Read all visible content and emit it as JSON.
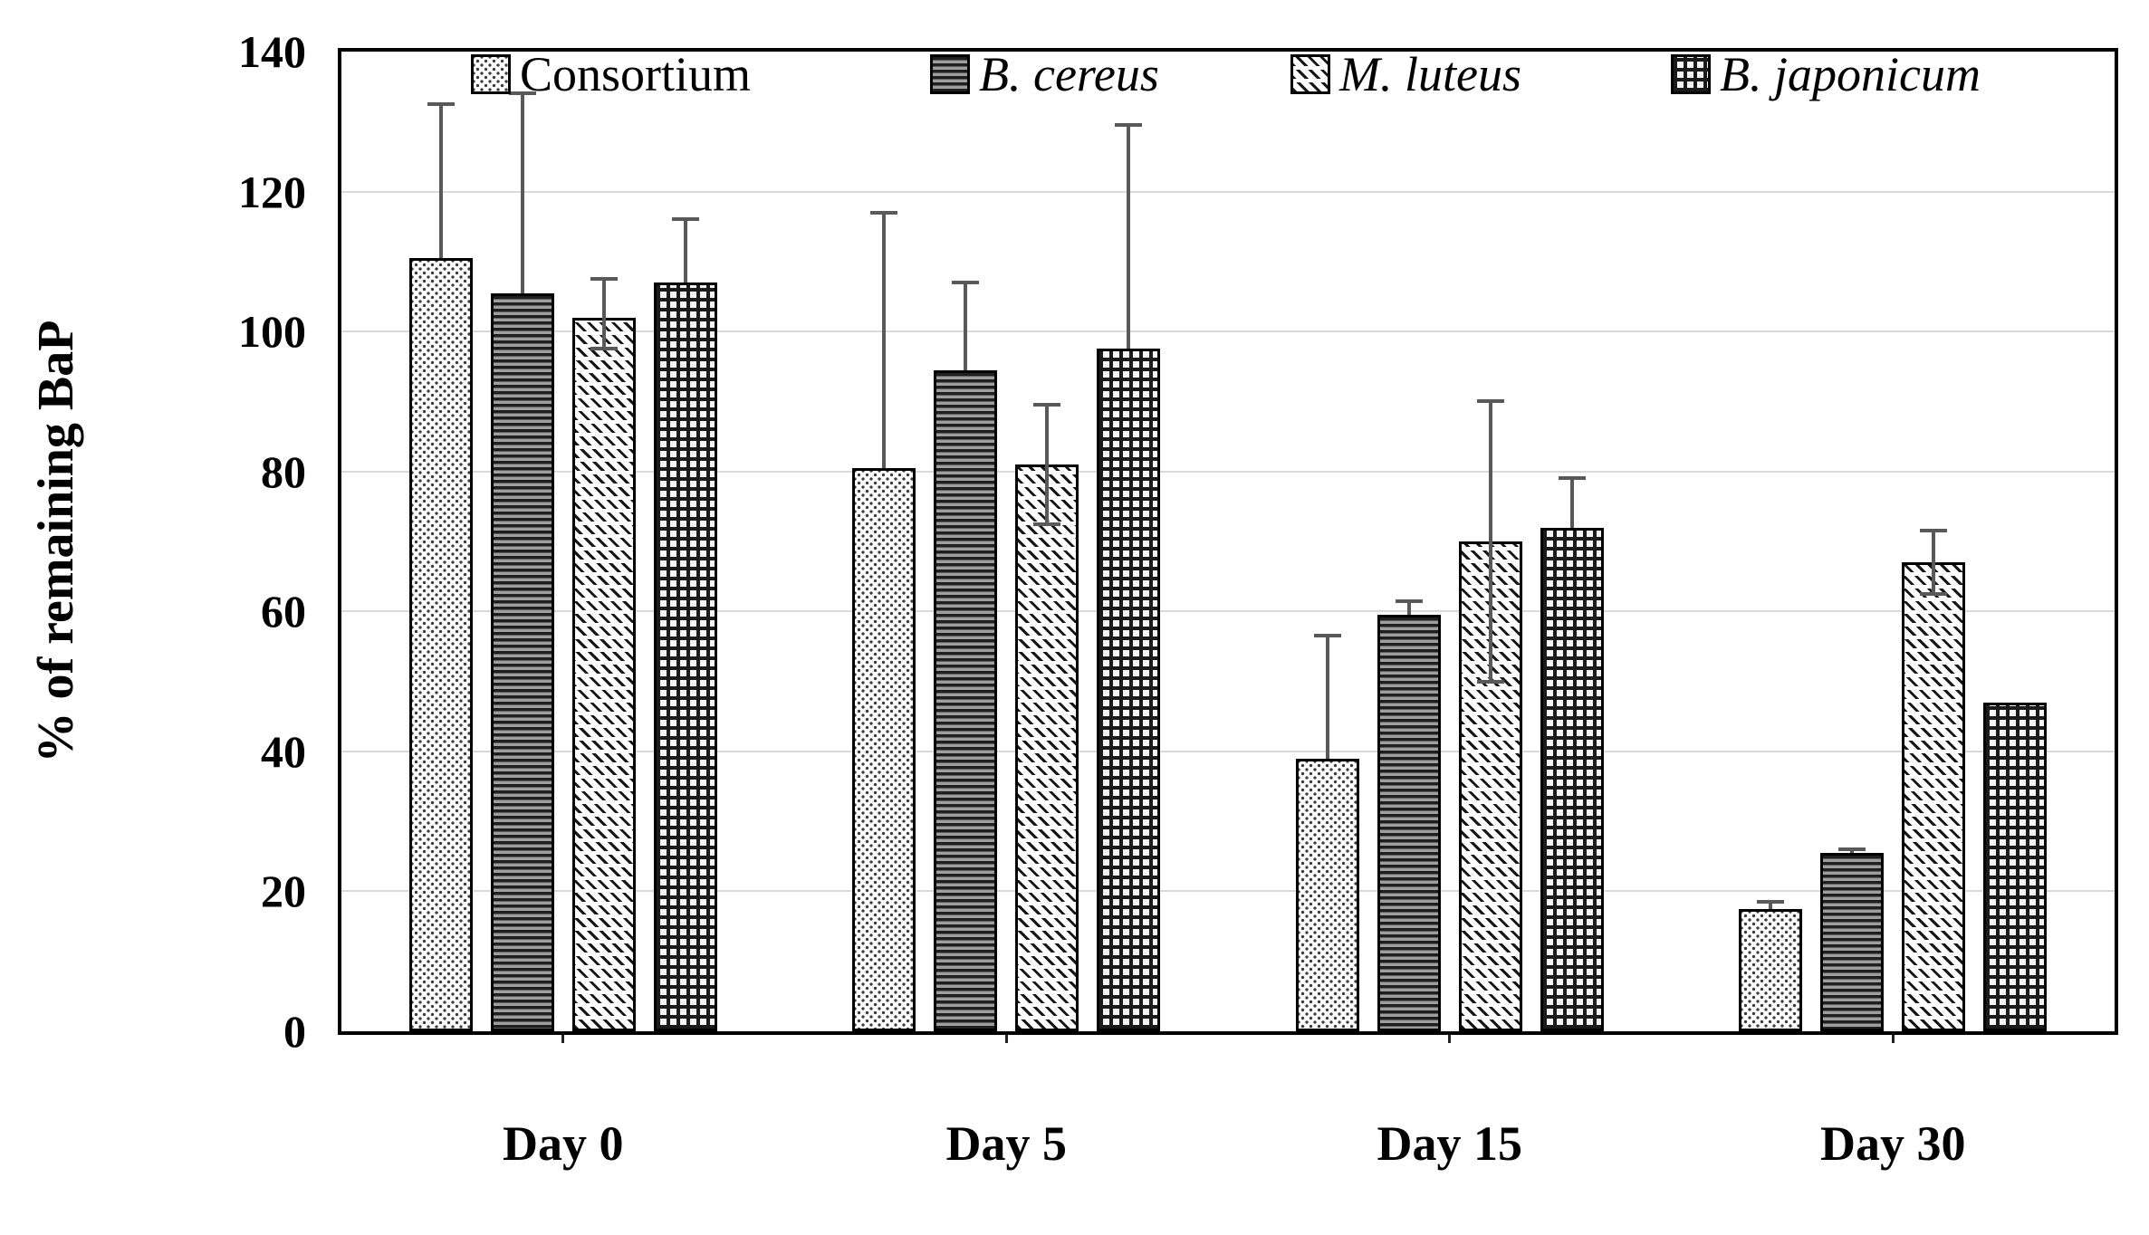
{
  "chart_data": {
    "type": "bar",
    "title": "",
    "xlabel": "",
    "ylabel": "% of remaining BaP",
    "ylim": [
      0,
      140
    ],
    "yticks": [
      0,
      20,
      40,
      60,
      80,
      100,
      120,
      140
    ],
    "grid": true,
    "legend_position": "top-inside",
    "categories": [
      "Day 0",
      "Day 5",
      "Day 15",
      "Day 30"
    ],
    "series": [
      {
        "name": "Consortium",
        "italic": false,
        "pattern": "dots",
        "values": [
          110.5,
          80.5,
          39,
          17.5
        ],
        "err_up": [
          22,
          36.5,
          17.5,
          1
        ],
        "err_down": [
          0,
          0,
          0,
          0
        ]
      },
      {
        "name": "B. cereus",
        "italic": true,
        "pattern": "hlines",
        "values": [
          105.5,
          94.5,
          59.5,
          25.5
        ],
        "err_up": [
          28.5,
          12.5,
          2,
          0.5
        ],
        "err_down": [
          0,
          0,
          0,
          0
        ]
      },
      {
        "name": "M. luteus",
        "italic": true,
        "pattern": "diag",
        "values": [
          102,
          81,
          70,
          67
        ],
        "err_up": [
          5.5,
          8.5,
          20,
          4.5
        ],
        "err_down": [
          4.5,
          8.5,
          20,
          4.5
        ]
      },
      {
        "name": "B. japonicum",
        "italic": true,
        "pattern": "grid",
        "values": [
          107,
          97.5,
          72,
          47
        ],
        "err_up": [
          9,
          32,
          7,
          0
        ],
        "err_down": [
          0,
          0,
          0,
          0
        ]
      }
    ],
    "colors": {
      "error_bar": "#595959",
      "gridline": "#d9d9d9",
      "frame": "#000000",
      "text": "#000000"
    }
  }
}
